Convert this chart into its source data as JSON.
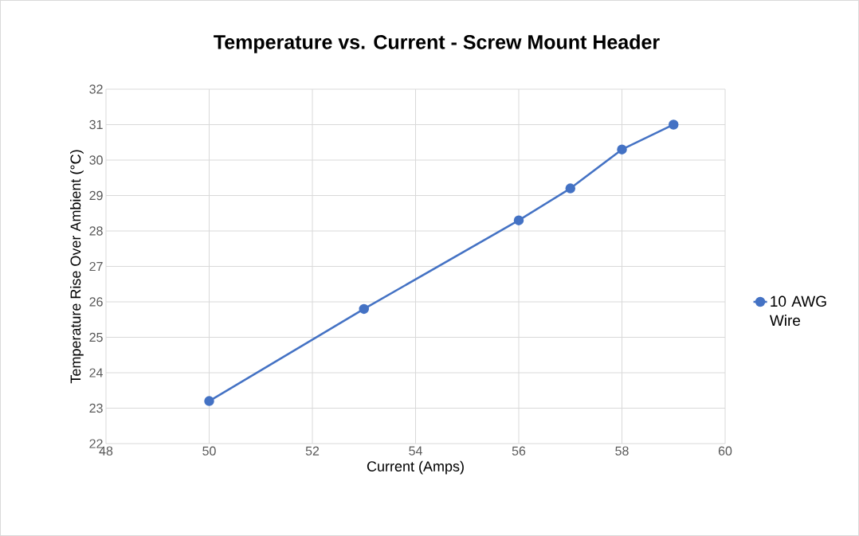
{
  "chart_data": {
    "type": "line",
    "title": "Temperature vs. Current - Screw Mount Header",
    "xlabel": "Current (Amps)",
    "ylabel": "Temperature Rise Over Ambient (°C)",
    "x": [
      50,
      53,
      56,
      57,
      58,
      59
    ],
    "series": [
      {
        "name": "10 AWG Wire",
        "color": "#4472c4",
        "values": [
          23.2,
          25.8,
          28.3,
          29.2,
          30.3,
          31.0
        ]
      }
    ],
    "xlim": [
      48,
      60
    ],
    "xticks": [
      48,
      50,
      52,
      54,
      56,
      58,
      60
    ],
    "ylim": [
      22,
      32
    ],
    "yticks": [
      22,
      23,
      24,
      25,
      26,
      27,
      28,
      29,
      30,
      31,
      32
    ],
    "grid": true,
    "legend": "right",
    "marker": "circle",
    "line_style": "solid"
  }
}
